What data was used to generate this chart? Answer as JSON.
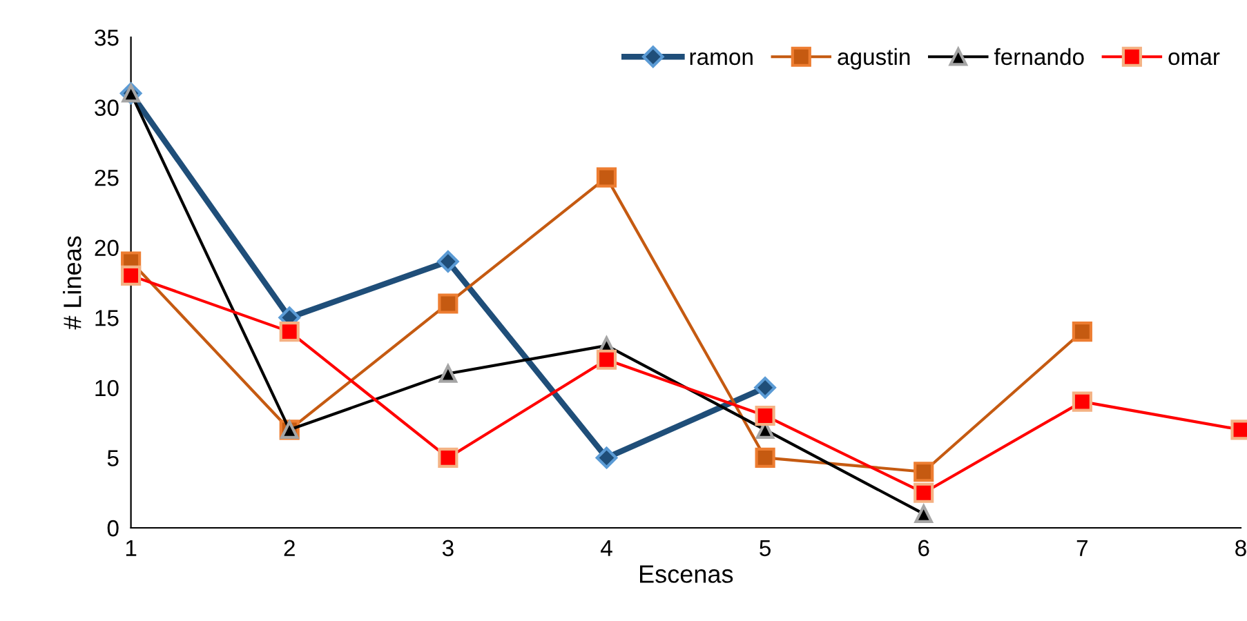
{
  "chart_data": {
    "type": "line",
    "xlabel": "Escenas",
    "ylabel": "# Lineas",
    "x": [
      1,
      2,
      3,
      4,
      5,
      6,
      7,
      8
    ],
    "series": [
      {
        "name": "ramon",
        "color": "#1f4e79",
        "values": [
          31,
          15,
          19,
          5,
          10,
          null,
          null,
          null
        ],
        "marker": "diamond"
      },
      {
        "name": "agustin",
        "color": "#c55a11",
        "values": [
          19,
          7,
          16,
          25,
          5,
          4,
          14,
          null
        ],
        "marker": "square"
      },
      {
        "name": "fernando",
        "color": "#000000",
        "values": [
          31,
          7,
          11,
          13,
          7,
          1,
          null,
          null
        ],
        "marker": "triangle"
      },
      {
        "name": "omar",
        "color": "#ff0000",
        "values": [
          18,
          14,
          5,
          12,
          8,
          2.5,
          9,
          7
        ],
        "marker": "square"
      }
    ],
    "xlim": [
      1,
      8
    ],
    "xticks": [
      1,
      2,
      3,
      4,
      5,
      6,
      7,
      8
    ],
    "ylim": [
      0,
      35
    ],
    "yticks": [
      0,
      5,
      10,
      15,
      20,
      25,
      30,
      35
    ],
    "grid": false,
    "legend": "top right",
    "line_style": "solid"
  }
}
